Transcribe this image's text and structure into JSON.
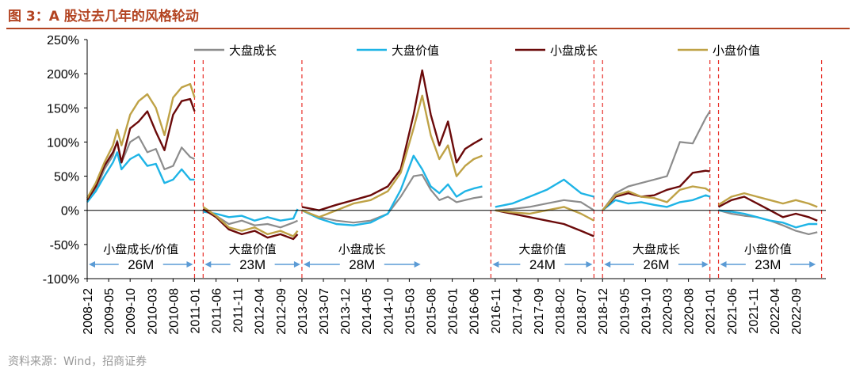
{
  "header": {
    "title": "图 3：A 股过去几年的风格轮动"
  },
  "footer": {
    "source": "资料来源：Wind，招商证券"
  },
  "colors": {
    "large_growth": "#8c8c8c",
    "large_value": "#1eb4e6",
    "small_growth": "#6b0a0a",
    "small_value": "#bfa246",
    "divider": "#e8302a",
    "arrow": "#5b9bd5",
    "title": "#b34422"
  },
  "chart_data": {
    "type": "line",
    "title": "A 股过去几年的风格轮动",
    "ylim": [
      -100,
      250
    ],
    "yticks": [
      -100,
      -50,
      0,
      50,
      100,
      150,
      200,
      250
    ],
    "ytick_labels": [
      "-100%",
      "-50%",
      "0%",
      "50%",
      "100%",
      "150%",
      "200%",
      "250%"
    ],
    "xtick_labels": [
      "2008-12",
      "2009-05",
      "2009-10",
      "2010-03",
      "2010-08",
      "2011-01",
      "2011-06",
      "2011-11",
      "2012-04",
      "2012-09",
      "2013-02",
      "2013-07",
      "2013-12",
      "2014-05",
      "2014-10",
      "2015-03",
      "2015-08",
      "2016-01",
      "2016-06",
      "2016-11",
      "2017-04",
      "2017-09",
      "2018-02",
      "2018-07",
      "2018-12",
      "2019-05",
      "2019-10",
      "2020-03",
      "2020-08",
      "2021-01",
      "2021-06",
      "2021-11",
      "2022-04",
      "2022-09"
    ],
    "legend": [
      "大盘成长",
      "大盘价值",
      "小盘成长",
      "小盘价值"
    ],
    "dividers": [
      "2011-01",
      "2011-03",
      "2013-02",
      "2016-10",
      "2018-10",
      "2018-12",
      "2021-01",
      "2021-03",
      "2023-03"
    ],
    "periods": [
      {
        "label": "小盘成长/价值",
        "duration": "26M",
        "start": "2008-12",
        "end": "2011-01"
      },
      {
        "label": "大盘价值",
        "duration": "23M",
        "start": "2011-03",
        "end": "2013-02"
      },
      {
        "label": "小盘成长",
        "duration": "28M",
        "start": "2013-02",
        "end": "2015-06"
      },
      {
        "label": "大盘价值",
        "duration": "24M",
        "start": "2016-10",
        "end": "2018-10"
      },
      {
        "label": "大盘成长",
        "duration": "26M",
        "start": "2018-12",
        "end": "2021-01"
      },
      {
        "label": "小盘价值",
        "duration": "23M",
        "start": "2021-03",
        "end": "2023-02"
      }
    ],
    "segments": [
      {
        "x": [
          "2008-12",
          "2009-02",
          "2009-04",
          "2009-06",
          "2009-07",
          "2009-08",
          "2009-10",
          "2009-12",
          "2010-02",
          "2010-04",
          "2010-06",
          "2010-08",
          "2010-10",
          "2010-12",
          "2011-01"
        ],
        "series": [
          {
            "name": "大盘成长",
            "values": [
              15,
              30,
              60,
              80,
              102,
              70,
              100,
              108,
              85,
              90,
              60,
              65,
              92,
              78,
              75
            ]
          },
          {
            "name": "大盘价值",
            "values": [
              12,
              28,
              50,
              70,
              85,
              60,
              75,
              82,
              65,
              68,
              40,
              45,
              60,
              45,
              45
            ]
          },
          {
            "name": "小盘成长",
            "values": [
              15,
              35,
              65,
              85,
              100,
              70,
              120,
              130,
              145,
              115,
              88,
              140,
              160,
              163,
              145
            ]
          },
          {
            "name": "小盘价值",
            "values": [
              18,
              40,
              70,
              95,
              118,
              95,
              140,
              160,
              170,
              150,
              110,
              165,
              180,
              185,
              165
            ]
          }
        ]
      },
      {
        "x": [
          "2011-03",
          "2011-06",
          "2011-09",
          "2011-12",
          "2012-03",
          "2012-06",
          "2012-09",
          "2012-12",
          "2013-01"
        ],
        "series": [
          {
            "name": "大盘成长",
            "values": [
              0,
              -8,
              -20,
              -15,
              -22,
              -20,
              -25,
              -18,
              -15
            ]
          },
          {
            "name": "大盘价值",
            "values": [
              -2,
              -5,
              -10,
              -8,
              -15,
              -10,
              -15,
              -12,
              2
            ]
          },
          {
            "name": "小盘成长",
            "values": [
              2,
              -10,
              -28,
              -35,
              -30,
              -40,
              -35,
              -42,
              -35
            ]
          },
          {
            "name": "小盘价值",
            "values": [
              5,
              -8,
              -25,
              -30,
              -25,
              -35,
              -30,
              -38,
              -30
            ]
          }
        ]
      },
      {
        "x": [
          "2013-02",
          "2013-06",
          "2013-10",
          "2014-02",
          "2014-06",
          "2014-10",
          "2015-01",
          "2015-04",
          "2015-06",
          "2015-08",
          "2015-10",
          "2015-12",
          "2016-02",
          "2016-04",
          "2016-06",
          "2016-08"
        ],
        "series": [
          {
            "name": "大盘成长",
            "values": [
              0,
              -10,
              -15,
              -18,
              -15,
              -5,
              20,
              50,
              52,
              30,
              15,
              20,
              12,
              15,
              18,
              20
            ]
          },
          {
            "name": "大盘价值",
            "values": [
              0,
              -12,
              -20,
              -22,
              -18,
              -5,
              30,
              80,
              60,
              35,
              25,
              38,
              20,
              28,
              32,
              35
            ]
          },
          {
            "name": "小盘成长",
            "values": [
              5,
              0,
              8,
              15,
              22,
              35,
              60,
              140,
              205,
              140,
              95,
              130,
              70,
              90,
              98,
              105
            ]
          },
          {
            "name": "小盘价值",
            "values": [
              0,
              -10,
              0,
              10,
              15,
              28,
              55,
              120,
              168,
              110,
              75,
              95,
              50,
              65,
              75,
              80
            ]
          }
        ]
      },
      {
        "x": [
          "2016-11",
          "2017-03",
          "2017-07",
          "2017-11",
          "2018-03",
          "2018-07",
          "2018-10"
        ],
        "series": [
          {
            "name": "大盘成长",
            "values": [
              0,
              2,
              5,
              10,
              15,
              12,
              0
            ]
          },
          {
            "name": "大盘价值",
            "values": [
              5,
              10,
              20,
              30,
              45,
              25,
              20
            ]
          },
          {
            "name": "小盘成长",
            "values": [
              0,
              -5,
              -10,
              -15,
              -20,
              -30,
              -38
            ]
          },
          {
            "name": "小盘价值",
            "values": [
              0,
              -3,
              -5,
              0,
              5,
              -5,
              -15
            ]
          }
        ]
      },
      {
        "x": [
          "2018-12",
          "2019-03",
          "2019-06",
          "2019-09",
          "2019-12",
          "2020-03",
          "2020-06",
          "2020-09",
          "2020-12",
          "2021-01"
        ],
        "series": [
          {
            "name": "大盘成长",
            "values": [
              0,
              25,
              35,
              40,
              45,
              50,
              100,
              98,
              135,
              145
            ]
          },
          {
            "name": "大盘价值",
            "values": [
              0,
              15,
              10,
              12,
              8,
              5,
              12,
              15,
              22,
              20
            ]
          },
          {
            "name": "小盘成长",
            "values": [
              0,
              20,
              25,
              20,
              22,
              30,
              35,
              55,
              58,
              57
            ]
          },
          {
            "name": "小盘价值",
            "values": [
              0,
              22,
              28,
              20,
              18,
              12,
              30,
              35,
              32,
              28
            ]
          }
        ]
      },
      {
        "x": [
          "2021-03",
          "2021-06",
          "2021-09",
          "2021-12",
          "2022-03",
          "2022-06",
          "2022-09",
          "2022-12",
          "2023-02"
        ],
        "series": [
          {
            "name": "大盘成长",
            "values": [
              0,
              -5,
              -8,
              -10,
              -15,
              -22,
              -30,
              -35,
              -32
            ]
          },
          {
            "name": "大盘价值",
            "values": [
              0,
              -2,
              -5,
              -10,
              -15,
              -18,
              -25,
              -20,
              -20
            ]
          },
          {
            "name": "小盘成长",
            "values": [
              5,
              15,
              20,
              10,
              0,
              -10,
              -5,
              -10,
              -15
            ]
          },
          {
            "name": "小盘价值",
            "values": [
              8,
              20,
              25,
              20,
              15,
              10,
              15,
              10,
              5
            ]
          }
        ]
      }
    ]
  }
}
